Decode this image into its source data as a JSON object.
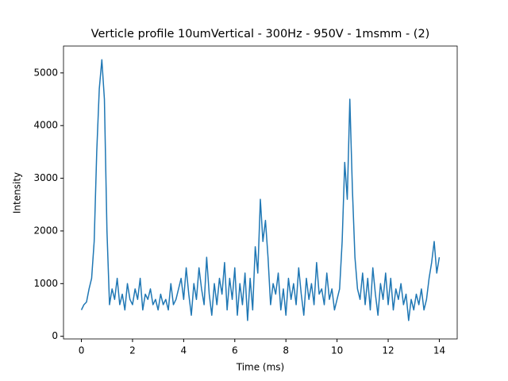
{
  "chart_data": {
    "type": "line",
    "title": "Verticle profile 10umVertical - 300Hz - 950V - 1msmm - (2)",
    "x_label": "Time (ms)",
    "y_label": "Intensity",
    "x": [
      0,
      0.1,
      0.2,
      0.3,
      0.4,
      0.5,
      0.6,
      0.7,
      0.8,
      0.9,
      1.0,
      1.1,
      1.2,
      1.3,
      1.4,
      1.5,
      1.6,
      1.7,
      1.8,
      1.9,
      2.0,
      2.1,
      2.2,
      2.3,
      2.4,
      2.5,
      2.6,
      2.7,
      2.8,
      2.9,
      3.0,
      3.1,
      3.2,
      3.3,
      3.4,
      3.5,
      3.6,
      3.7,
      3.8,
      3.9,
      4.0,
      4.1,
      4.2,
      4.3,
      4.4,
      4.5,
      4.6,
      4.7,
      4.8,
      4.9,
      5.0,
      5.1,
      5.2,
      5.3,
      5.4,
      5.5,
      5.6,
      5.7,
      5.8,
      5.9,
      6.0,
      6.1,
      6.2,
      6.3,
      6.4,
      6.5,
      6.6,
      6.7,
      6.8,
      6.9,
      7.0,
      7.1,
      7.2,
      7.3,
      7.4,
      7.5,
      7.6,
      7.7,
      7.8,
      7.9,
      8.0,
      8.1,
      8.2,
      8.3,
      8.4,
      8.5,
      8.6,
      8.7,
      8.8,
      8.9,
      9.0,
      9.1,
      9.2,
      9.3,
      9.4,
      9.5,
      9.6,
      9.7,
      9.8,
      9.9,
      10.0,
      10.1,
      10.2,
      10.3,
      10.4,
      10.5,
      10.6,
      10.7,
      10.8,
      10.9,
      11.0,
      11.1,
      11.2,
      11.3,
      11.4,
      11.5,
      11.6,
      11.7,
      11.8,
      11.9,
      12.0,
      12.1,
      12.2,
      12.3,
      12.4,
      12.5,
      12.6,
      12.7,
      12.8,
      12.9,
      13.0,
      13.1,
      13.2,
      13.3,
      13.4,
      13.5,
      13.6,
      13.7,
      13.8,
      13.9,
      14.0
    ],
    "series": [
      {
        "name": "Intensity",
        "color": "#1f77b4",
        "values": [
          500,
          600,
          650,
          900,
          1100,
          1800,
          3500,
          4700,
          5250,
          4500,
          2000,
          600,
          900,
          700,
          1100,
          600,
          800,
          500,
          1000,
          700,
          600,
          900,
          700,
          1100,
          500,
          800,
          700,
          900,
          600,
          700,
          500,
          800,
          600,
          700,
          500,
          1000,
          600,
          700,
          900,
          1100,
          700,
          1300,
          800,
          400,
          1000,
          700,
          1300,
          900,
          600,
          1500,
          800,
          400,
          1000,
          600,
          1100,
          800,
          1400,
          500,
          1100,
          700,
          1300,
          400,
          1000,
          600,
          1200,
          300,
          1100,
          500,
          1700,
          1200,
          2600,
          1800,
          2200,
          1500,
          600,
          1000,
          800,
          1200,
          500,
          900,
          400,
          1100,
          700,
          1000,
          600,
          1300,
          800,
          400,
          1100,
          700,
          1000,
          600,
          1400,
          800,
          900,
          600,
          1200,
          700,
          900,
          500,
          700,
          900,
          1800,
          3300,
          2600,
          4500,
          2800,
          1500,
          900,
          700,
          1200,
          600,
          1100,
          500,
          1300,
          800,
          400,
          1000,
          700,
          1200,
          600,
          1100,
          500,
          900,
          700,
          1000,
          600,
          800,
          300,
          700,
          500,
          800,
          600,
          900,
          500,
          700,
          1100,
          1400,
          1800,
          1200,
          1500
        ]
      }
    ],
    "xlim": [
      -0.7,
      14.7
    ],
    "ylim": [
      -50,
      5510
    ],
    "xticks": [
      0,
      2,
      4,
      6,
      8,
      10,
      12,
      14
    ],
    "yticks": [
      0,
      1000,
      2000,
      3000,
      4000,
      5000
    ]
  }
}
